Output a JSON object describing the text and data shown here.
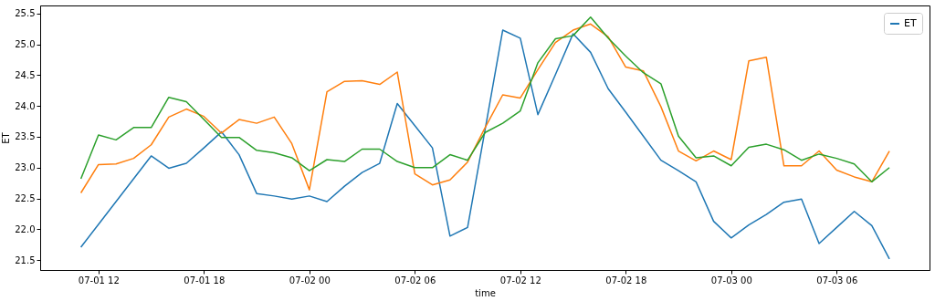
{
  "chart_data": {
    "type": "line",
    "xlabel": "time",
    "ylabel": "ET",
    "x": [
      "--07-01T11:00",
      "--07-01T12:00",
      "--07-01T13:00",
      "--07-01T14:00",
      "--07-01T15:00",
      "--07-01T16:00",
      "--07-01T17:00",
      "--07-01T18:00",
      "--07-01T19:00",
      "--07-01T20:00",
      "--07-01T21:00",
      "--07-01T22:00",
      "--07-01T23:00",
      "--07-02T00:00",
      "--07-02T01:00",
      "--07-02T02:00",
      "--07-02T03:00",
      "--07-02T04:00",
      "--07-02T05:00",
      "--07-02T06:00",
      "--07-02T07:00",
      "--07-02T08:00",
      "--07-02T09:00",
      "--07-02T10:00",
      "--07-02T11:00",
      "--07-02T12:00",
      "--07-02T13:00",
      "--07-02T14:00",
      "--07-02T15:00",
      "--07-02T16:00",
      "--07-02T17:00",
      "--07-02T18:00",
      "--07-02T19:00",
      "--07-02T20:00",
      "--07-02T21:00",
      "--07-02T22:00",
      "--07-02T23:00",
      "--07-03T00:00",
      "--07-03T01:00",
      "--07-03T02:00",
      "--07-03T03:00",
      "--07-03T04:00",
      "--07-03T05:00",
      "--07-03T06:00",
      "--07-03T07:00",
      "--07-03T08:00",
      "--07-03T09:00"
    ],
    "series": [
      {
        "name": "ET",
        "color": "#1f77b4",
        "values": [
          21.71,
          22.08,
          22.45,
          22.82,
          23.19,
          22.99,
          23.07,
          23.32,
          23.58,
          23.21,
          22.58,
          22.54,
          22.49,
          22.54,
          22.45,
          22.7,
          22.92,
          23.07,
          24.04,
          23.68,
          23.32,
          21.89,
          22.03,
          23.62,
          25.23,
          25.1,
          23.86,
          24.51,
          25.17,
          24.87,
          24.28,
          23.9,
          23.51,
          23.12,
          22.95,
          22.77,
          22.13,
          21.86,
          22.07,
          22.24,
          22.44,
          22.49,
          21.77,
          22.03,
          22.29,
          22.06,
          21.52
        ]
      },
      {
        "color": "#ff7f0e",
        "values": [
          22.59,
          23.05,
          23.06,
          23.15,
          23.37,
          23.82,
          23.95,
          23.83,
          23.56,
          23.78,
          23.72,
          23.82,
          23.39,
          22.64,
          24.23,
          24.4,
          24.41,
          24.35,
          24.55,
          22.9,
          22.72,
          22.8,
          23.09,
          23.65,
          24.18,
          24.13,
          24.59,
          25.03,
          25.23,
          25.33,
          25.12,
          24.63,
          24.57,
          23.99,
          23.27,
          23.11,
          23.27,
          23.13,
          24.73,
          24.79,
          23.03,
          23.03,
          23.27,
          22.96,
          22.85,
          22.77,
          23.27
        ]
      },
      {
        "color": "#2ca02c",
        "values": [
          22.82,
          23.53,
          23.45,
          23.65,
          23.65,
          24.14,
          24.07,
          23.78,
          23.49,
          23.49,
          23.28,
          23.24,
          23.16,
          22.95,
          23.13,
          23.1,
          23.3,
          23.3,
          23.1,
          23.0,
          23.0,
          23.21,
          23.12,
          23.57,
          23.72,
          23.92,
          24.7,
          25.09,
          25.14,
          25.44,
          25.1,
          24.81,
          24.54,
          24.36,
          23.51,
          23.16,
          23.19,
          23.03,
          23.33,
          23.38,
          23.29,
          23.12,
          23.22,
          23.15,
          23.06,
          22.77,
          23.0
        ]
      }
    ],
    "xlim": [
      "--07-01T08:41",
      "--07-03T11:17"
    ],
    "xticks": [
      {
        "value": "--07-01T12:00",
        "label": "07-01 12"
      },
      {
        "value": "--07-01T18:00",
        "label": "07-01 18"
      },
      {
        "value": "--07-02T00:00",
        "label": "07-02 00"
      },
      {
        "value": "--07-02T06:00",
        "label": "07-02 06"
      },
      {
        "value": "--07-02T12:00",
        "label": "07-02 12"
      },
      {
        "value": "--07-02T18:00",
        "label": "07-02 18"
      },
      {
        "value": "--07-03T00:00",
        "label": "07-03 00"
      },
      {
        "value": "--07-03T06:00",
        "label": "07-03 06"
      }
    ],
    "ylim": [
      21.34,
      25.63
    ],
    "yticks": [
      21.5,
      {
        "value": 22,
        "label": "22.0"
      },
      22.5,
      {
        "value": 23,
        "label": "23.0"
      },
      23.5,
      {
        "value": 24,
        "label": "24.0"
      },
      24.5,
      {
        "value": 25,
        "label": "25.0"
      },
      25.5
    ],
    "grid": false,
    "legend": "top right"
  }
}
